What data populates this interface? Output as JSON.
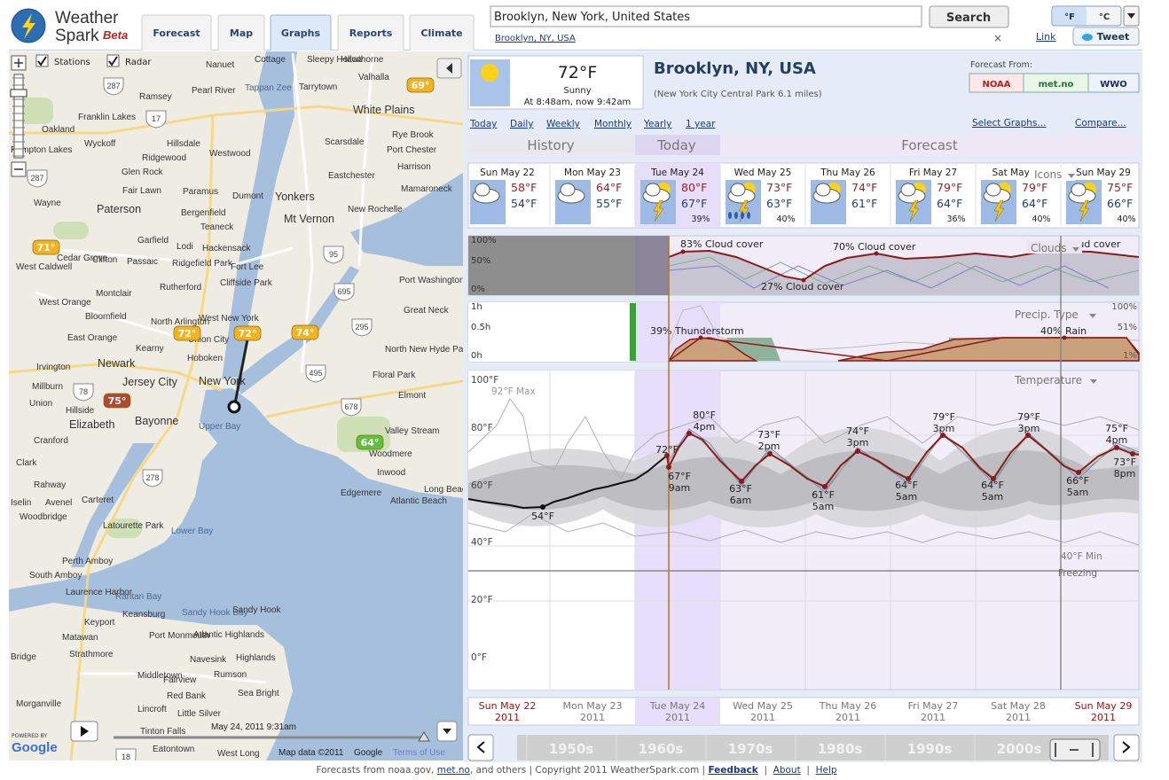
{
  "header": {
    "logo": {
      "line1": "Weather",
      "line2": "Spark",
      "beta": "Beta"
    },
    "tabs": [
      "Forecast",
      "Map",
      "Graphs",
      "Reports",
      "Climate"
    ],
    "search": {
      "value": "Brooklyn, New York, United States",
      "button": "Search",
      "location_link": "Brooklyn, NY, USA",
      "close": "×"
    },
    "link": "Link",
    "tweet": "Tweet",
    "units": [
      "°F",
      "°C"
    ]
  },
  "map": {
    "layers": [
      "Stations",
      "Radar"
    ],
    "places": [
      "Nanuet",
      "Cottage",
      "Sleepy Hollow",
      "Hawthorne",
      "Valhalla",
      "Ramsey",
      "Pearl River",
      "Tappan Zee",
      "Tarrytown",
      "White Plains",
      "Franklin Lakes",
      "Oakland",
      "Wyckoff",
      "Hillsdale",
      "Scarsdale",
      "Rye Brook",
      "Port Chester",
      "Ridgewood",
      "Westwood",
      "Glen Rock",
      "Harrison",
      "Eastchester",
      "Pompton Lakes",
      "Fair Lawn",
      "Paramus",
      "Dumont",
      "Yonkers",
      "Mamaroneck",
      "Wayne",
      "Paterson",
      "Bergenfield",
      "Teaneck",
      "Mt Vernon",
      "New Rochelle",
      "Garfield",
      "Lodi",
      "Hackensack",
      "Cedar Grove",
      "Clifton",
      "Passaic",
      "Ridgefield Park",
      "Fort Lee",
      "West Caldwell",
      "Cliffside Park",
      "Port Washington",
      "Montclair",
      "Rutherford",
      "West Orange",
      "Bloomfield",
      "North Arlington",
      "West New York",
      "Great Neck",
      "East Orange",
      "Kearny",
      "Union City",
      "North New Hyde Park",
      "Irvington",
      "Newark",
      "Hoboken",
      "Floral Park",
      "Millburn",
      "Jersey City",
      "New York",
      "Elmont",
      "Union",
      "Hillside",
      "Elizabeth",
      "Bayonne",
      "Upper Bay",
      "Valley Stream",
      "Woodmere",
      "Cranford",
      "Clark",
      "Rahway",
      "Carteret",
      "Inwood",
      "Edgemere",
      "Atlantic Beach",
      "Long Beach",
      "Avenel",
      "Iselin",
      "Woodbridge",
      "Latourette Park",
      "Lower Bay",
      "Perth Amboy",
      "South Amboy",
      "Laurence Harbor",
      "Raritan Bay",
      "Keansburg",
      "Sandy Hook Bay",
      "Sandy Hook",
      "Keyport",
      "Matawan",
      "Port Monmouth",
      "Atlantic Highlands",
      "Strathmore",
      "Navesink",
      "Highlands",
      "Bridge",
      "Middletown",
      "Fairview",
      "Rumson",
      "Red Bank",
      "Sea Bright",
      "Morganville",
      "Lincroft",
      "Little Silver",
      "Tinton Falls",
      "Eatontown",
      "West Long"
    ],
    "shields": [
      "287",
      "17",
      "287",
      "95",
      "695",
      "295",
      "495",
      "678",
      "278",
      "78",
      "18"
    ],
    "temps": [
      "69°",
      "71°",
      "72°",
      "72°",
      "74°",
      "75°",
      "64°"
    ],
    "time": "May 24, 2011 9:31am",
    "attribution": "Map data ©2011",
    "google": "Google",
    "terms": "Terms of Use",
    "powered": "POWERED BY",
    "logo": "Google"
  },
  "current": {
    "temp": "72°F",
    "condition": "Sunny",
    "time": "At 8:48am, now 9:42am"
  },
  "location": {
    "name": "Brooklyn, NY, USA",
    "station": "(New York City Central Park 6.1 miles)"
  },
  "forecast_from": {
    "label": "Forecast From:",
    "sources": [
      "NOAA",
      "met.no",
      "WWO"
    ]
  },
  "nav": {
    "ranges": [
      "Today",
      "Daily",
      "Weekly",
      "Monthly",
      "Yearly",
      "1 year"
    ],
    "select_graphs": "Select Graphs...",
    "compare": "Compare..."
  },
  "sections": [
    "History",
    "Today",
    "Forecast"
  ],
  "days": [
    {
      "name": "Sun May 22",
      "high": "58°F",
      "low": "54°F"
    },
    {
      "name": "Mon May 23",
      "high": "64°F",
      "low": "55°F"
    },
    {
      "name": "Tue May 24",
      "high": "80°F",
      "low": "67°F",
      "pop": "39%"
    },
    {
      "name": "Wed May 25",
      "high": "73°F",
      "low": "63°F",
      "pop": "40%"
    },
    {
      "name": "Thu May 26",
      "high": "74°F",
      "low": "61°F"
    },
    {
      "name": "Fri May 27",
      "high": "79°F",
      "low": "64°F",
      "pop": "36%"
    },
    {
      "name": "Sat May 28",
      "high": "79°F",
      "low": "64°F",
      "pop": "40%"
    },
    {
      "name": "Sun May 29",
      "high": "75°F",
      "low": "66°F",
      "pop": "40%"
    }
  ],
  "icons_menu": "Icons",
  "clouds": {
    "ticks": [
      "100%",
      "50%",
      "0%"
    ],
    "annotations": [
      "83% Cloud cover",
      "70% Cloud cover",
      "27% Cloud cover",
      "70% Cloud cover"
    ],
    "menu": "Clouds"
  },
  "precip": {
    "ticks": [
      "1h",
      "0.5h",
      "0h"
    ],
    "right_ticks": [
      "100%",
      "51%",
      "1%"
    ],
    "annotations": [
      "39% Thunderstorm",
      "40% Rain"
    ],
    "menu": "Precip. Type"
  },
  "temperature": {
    "ticks": [
      "100°F",
      "80°F",
      "60°F",
      "40°F",
      "20°F",
      "0°F"
    ],
    "max": "92°F Max",
    "min": "40°F Min",
    "freezing": "Freezing",
    "menu": "Temperature",
    "annotations": [
      {
        "temp": "54°F"
      },
      {
        "temp": "72°F"
      },
      {
        "temp": "80°F",
        "time": "4pm"
      },
      {
        "temp": "67°F",
        "time": "9am"
      },
      {
        "temp": "73°F",
        "time": "2pm"
      },
      {
        "temp": "63°F",
        "time": "6am"
      },
      {
        "temp": "74°F",
        "time": "3pm"
      },
      {
        "temp": "61°F",
        "time": "5am"
      },
      {
        "temp": "79°F",
        "time": "3pm"
      },
      {
        "temp": "64°F",
        "time": "5am"
      },
      {
        "temp": "79°F",
        "time": "3pm"
      },
      {
        "temp": "64°F",
        "time": "5am"
      },
      {
        "temp": "75°F",
        "time": "4pm"
      },
      {
        "temp": "66°F",
        "time": "5am"
      },
      {
        "temp": "73°F",
        "time": "8pm"
      }
    ]
  },
  "timeline": [
    {
      "date": "Sun May 22",
      "year": "2011"
    },
    {
      "date": "Mon May 23",
      "year": "2011"
    },
    {
      "date": "Tue May 24",
      "year": "2011"
    },
    {
      "date": "Wed May 25",
      "year": "2011"
    },
    {
      "date": "Thu May 26",
      "year": "2011"
    },
    {
      "date": "Fri May 27",
      "year": "2011"
    },
    {
      "date": "Sat May 28",
      "year": "2011"
    },
    {
      "date": "Sun May 29",
      "year": "2011"
    }
  ],
  "decades": [
    "1950s",
    "1960s",
    "1970s",
    "1980s",
    "1990s",
    "2000s"
  ],
  "footer": {
    "text1": "Forecasts from noaa.gov, ",
    "metno": "met.no",
    "text2": ", and others | Copyright 2011 WeatherSpark.com | ",
    "feedback": "Feedback",
    "about": "About",
    "help": "Help"
  }
}
